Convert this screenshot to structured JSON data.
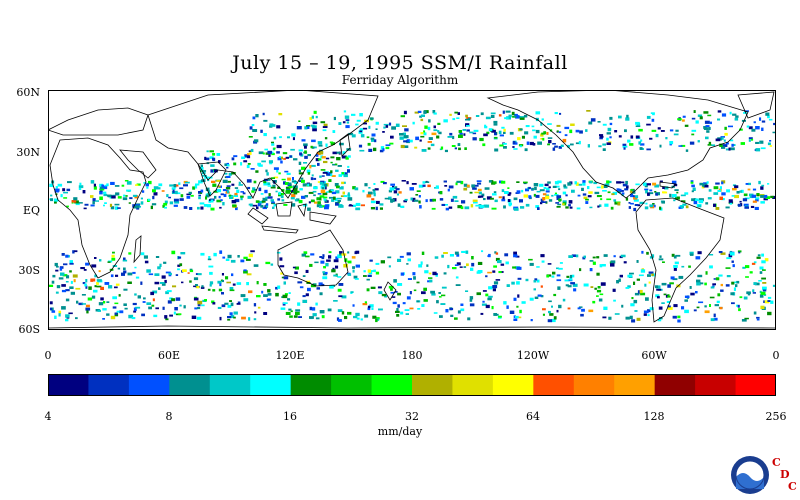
{
  "title": "July 15 – 19, 1995 SSM/I Rainfall",
  "subtitle": "Ferriday Algorithm",
  "map": {
    "lat_labels": [
      "60N",
      "30N",
      "EQ",
      "30S",
      "60S"
    ],
    "lon_labels": [
      "0",
      "60E",
      "120E",
      "180",
      "120W",
      "60W",
      "0"
    ]
  },
  "colorbar": {
    "colors": [
      "#000080",
      "#0030c0",
      "#0050ff",
      "#009090",
      "#00c8c8",
      "#00ffff",
      "#008c00",
      "#00c000",
      "#00ff00",
      "#b0b000",
      "#e0e000",
      "#ffff00",
      "#ff5000",
      "#ff8000",
      "#ffa000",
      "#900000",
      "#c80000",
      "#ff0000"
    ],
    "ticks": [
      "4",
      "8",
      "16",
      "32",
      "64",
      "128",
      "256"
    ],
    "units": "mm/day"
  },
  "logo": {
    "agency": "NOAA",
    "letters": [
      "C",
      "D",
      "C"
    ]
  }
}
